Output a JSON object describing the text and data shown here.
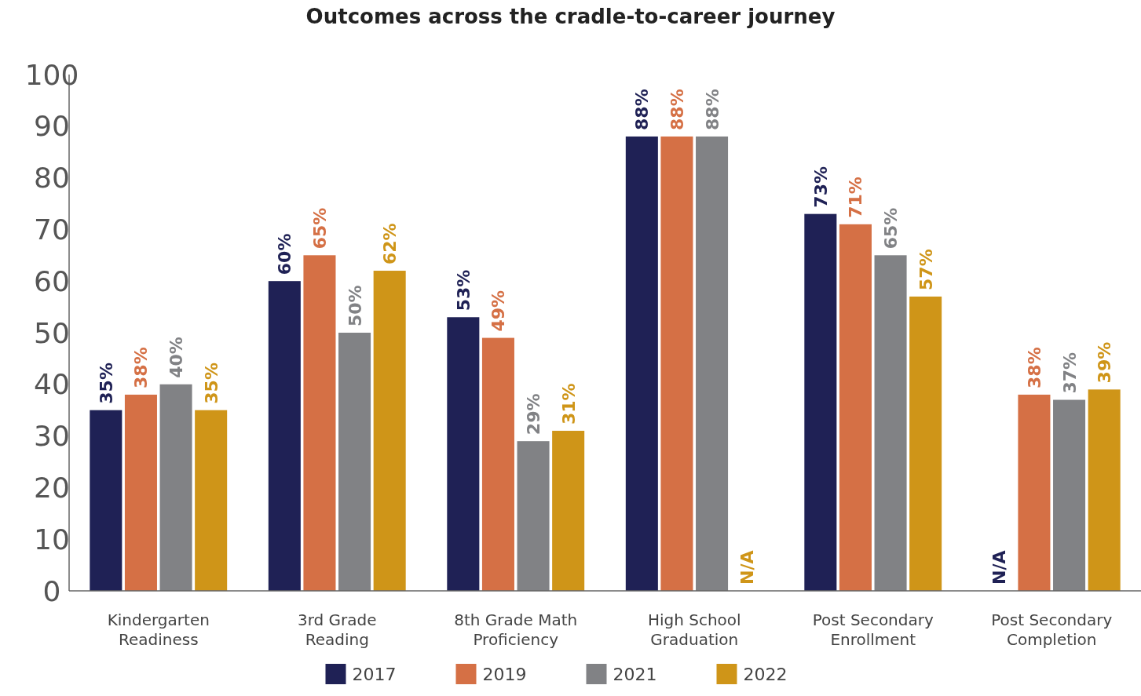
{
  "chart_data": {
    "type": "bar",
    "title": "Outcomes across the cradle-to-career journey",
    "categories": [
      "Kindergarten Readiness",
      "3rd Grade Reading",
      "8th Grade Math Proficiency",
      "High School Graduation",
      "Post Secondary Enrollment",
      "Post Secondary Completion"
    ],
    "series": [
      {
        "name": "2017",
        "color": "#1f2155",
        "values": [
          35,
          60,
          53,
          88,
          73,
          null
        ],
        "value_labels": [
          "35%",
          "60%",
          "53%",
          "88%",
          "73%",
          "N/A"
        ]
      },
      {
        "name": "2019",
        "color": "#d57045",
        "values": [
          38,
          65,
          49,
          88,
          71,
          38
        ],
        "value_labels": [
          "38%",
          "65%",
          "49%",
          "88%",
          "71%",
          "38%"
        ]
      },
      {
        "name": "2021",
        "color": "#818285",
        "values": [
          40,
          50,
          29,
          88,
          65,
          37
        ],
        "value_labels": [
          "40%",
          "50%",
          "29%",
          "88%",
          "65%",
          "37%"
        ]
      },
      {
        "name": "2022",
        "color": "#cf9518",
        "values": [
          35,
          62,
          31,
          null,
          57,
          39
        ],
        "value_labels": [
          "35%",
          "62%",
          "31%",
          "N/A",
          "57%",
          "39%"
        ]
      }
    ],
    "ylim": [
      0,
      100
    ],
    "yticks": [
      0,
      10,
      20,
      30,
      40,
      50,
      60,
      70,
      80,
      90,
      100
    ],
    "grid": false,
    "legend": "bottom"
  }
}
